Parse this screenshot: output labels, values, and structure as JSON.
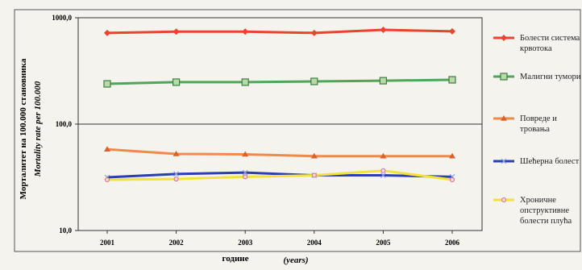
{
  "chart_data": {
    "type": "line",
    "y_label": "Морталитет на 100.000 становника",
    "y_label_en": "Mortality rate per 100.000",
    "x_label": "године",
    "x_label_en": "(years)",
    "categories": [
      "2001",
      "2002",
      "2003",
      "2004",
      "2005",
      "2006"
    ],
    "log_scale": true,
    "grid": true,
    "ylim": [
      10,
      1000
    ],
    "yticks": [
      {
        "value": 10,
        "label": "10,0"
      },
      {
        "value": 100,
        "label": "100,0"
      },
      {
        "value": 1000,
        "label": "1000,0"
      }
    ],
    "series": [
      {
        "name": "Болести система крвотока",
        "color": "#e8452c",
        "marker": "diamond",
        "values": [
          720,
          740,
          740,
          720,
          770,
          745
        ]
      },
      {
        "name": "Малигни тумори",
        "color": "#4fa657",
        "marker": "square",
        "values": [
          239,
          248,
          248,
          252,
          256,
          261
        ]
      },
      {
        "name": "Повреде и тровања",
        "color": "#f08a4b",
        "marker": "triangle",
        "values": [
          58,
          52.5,
          52,
          50,
          50,
          50
        ]
      },
      {
        "name": "Шећерна болест",
        "color": "#2b3fae",
        "marker": "x",
        "values": [
          31.6,
          34,
          35,
          33,
          33,
          32
        ]
      },
      {
        "name": "Хроничне опструктивне болести плућа",
        "color": "#f2e23a",
        "marker": "circle",
        "values": [
          30,
          30.5,
          32,
          33,
          36.5,
          30
        ]
      }
    ]
  }
}
